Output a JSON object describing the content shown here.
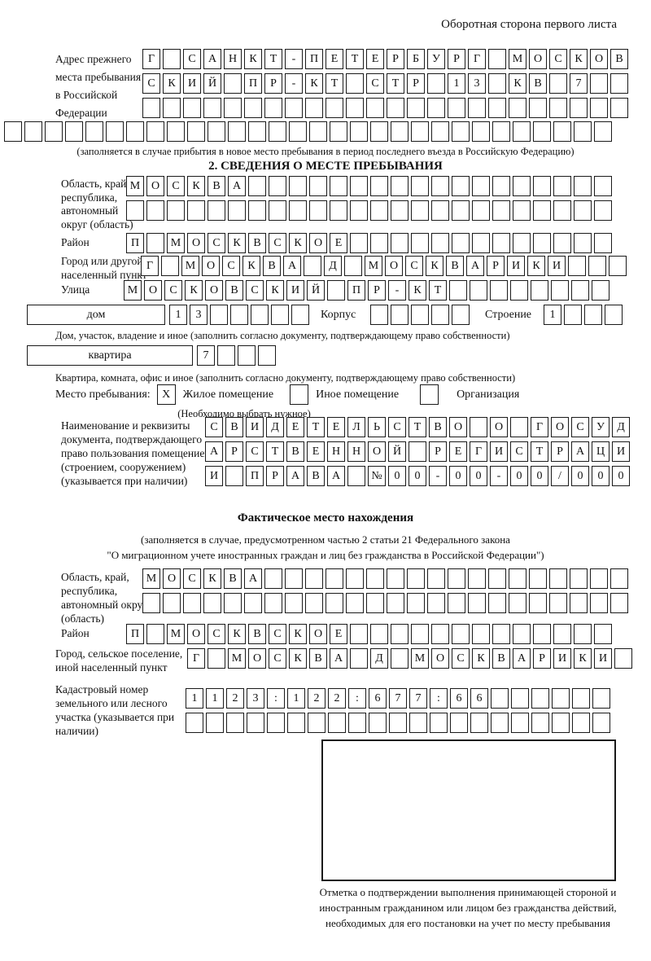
{
  "page": {
    "back_note": "Оборотная сторона первого листа"
  },
  "prev_address": {
    "label": "Адрес прежнего места пребывания в Российской Федерации",
    "rows": [
      {
        "cells": 24,
        "value": "Г САНКТ-ПЕТЕРБУРГ МОСКОВ"
      },
      {
        "cells": 24,
        "value": "СКИЙ ПР-КТ СТР 13 КВ 7"
      },
      {
        "cells": 24,
        "value": ""
      },
      {
        "cells": 30,
        "value": ""
      }
    ],
    "caption": "(заполняется в случае прибытия в новое место пребывания в период последнего въезда в Российскую Федерацию)"
  },
  "section2": {
    "title": "2. СВЕДЕНИЯ О МЕСТЕ ПРЕБЫВАНИЯ",
    "oblast": {
      "label": "Область, край, республика, автономный округ (область)",
      "rows": [
        {
          "cells": 24,
          "value": "МОСКВА"
        },
        {
          "cells": 24,
          "value": ""
        }
      ]
    },
    "raion": {
      "label": "Район",
      "row": {
        "cells": 24,
        "value": "П МОСКВСКОЕ"
      }
    },
    "gorod": {
      "label": "Город или другой населенный пункт",
      "row": {
        "cells": 24,
        "value": "Г МОСКВА Д МОСКВАРИКИ"
      }
    },
    "ulitsa": {
      "label": "Улица",
      "row": {
        "cells": 24,
        "value": "МОСКОВСКИЙ ПР-КТ"
      }
    },
    "dom": {
      "box_label": "дом",
      "row": {
        "cells": 7,
        "value": "13"
      },
      "korpus_label": "Корпус",
      "korpus_row": {
        "cells": 5,
        "value": ""
      },
      "stroenie_label": "Строение",
      "stroenie_row": {
        "cells": 4,
        "value": "1"
      },
      "caption": "Дом, участок, владение и иное (заполнить согласно документу, подтверждающему право собственности)"
    },
    "kvartira": {
      "box_label": "квартира",
      "row": {
        "cells": 4,
        "value": "7"
      },
      "caption": "Квартира, комната, офис и иное (заполнить согласно документу, подтверждающему право собственности)"
    },
    "mesto": {
      "label": "Место пребывания:",
      "options": [
        {
          "mark": "X",
          "label": "Жилое помещение"
        },
        {
          "mark": "",
          "label": "Иное помещение"
        },
        {
          "mark": "",
          "label": "Организация"
        }
      ],
      "caption": "(Необходимо выбрать нужное)"
    },
    "doc": {
      "label": "Наименование и реквизиты документа, подтверждающего право пользования помещением (строением, сооружением) (указывается при наличии)",
      "rows": [
        {
          "cells": 21,
          "value": "СВИДЕТЕЛЬСТВО О ГОСУД"
        },
        {
          "cells": 21,
          "value": "АРСТВЕННОЙ РЕГИСТРАЦИ"
        },
        {
          "cells": 21,
          "value": "И ПРАВА №00-00-00/000"
        }
      ]
    }
  },
  "fact": {
    "title": "Фактическое место нахождения",
    "caption_line1": "(заполняется в случае, предусмотренном частью 2 статьи 21 Федерального закона",
    "caption_line2": "\"О миграционном учете иностранных граждан и лиц без гражданства в Российской Федерации\")",
    "oblast": {
      "label": "Область, край, республика, автономный округ (область)",
      "rows": [
        {
          "cells": 24,
          "value": "МОСКВА"
        },
        {
          "cells": 24,
          "value": ""
        }
      ]
    },
    "raion": {
      "label": "Район",
      "row": {
        "cells": 24,
        "value": "П МОСКВСКОЕ"
      }
    },
    "gorod": {
      "label": "Город, сельское поселение, иной населенный пункт",
      "row": {
        "cells": 22,
        "value": "Г МОСКВА Д МОСКВАРИКИ"
      }
    },
    "kadastr": {
      "label": "Кадастровый номер земельного или лесного участка (указывается при наличии)",
      "rows": [
        {
          "cells": 21,
          "value": "1123:122:677:66"
        },
        {
          "cells": 21,
          "value": ""
        }
      ]
    },
    "stamp_caption": "Отметка о подтверждении выполнения принимающей стороной и иностранным гражданином или лицом без гражданства действий, необходимых для его постановки на учет по месту пребывания"
  }
}
